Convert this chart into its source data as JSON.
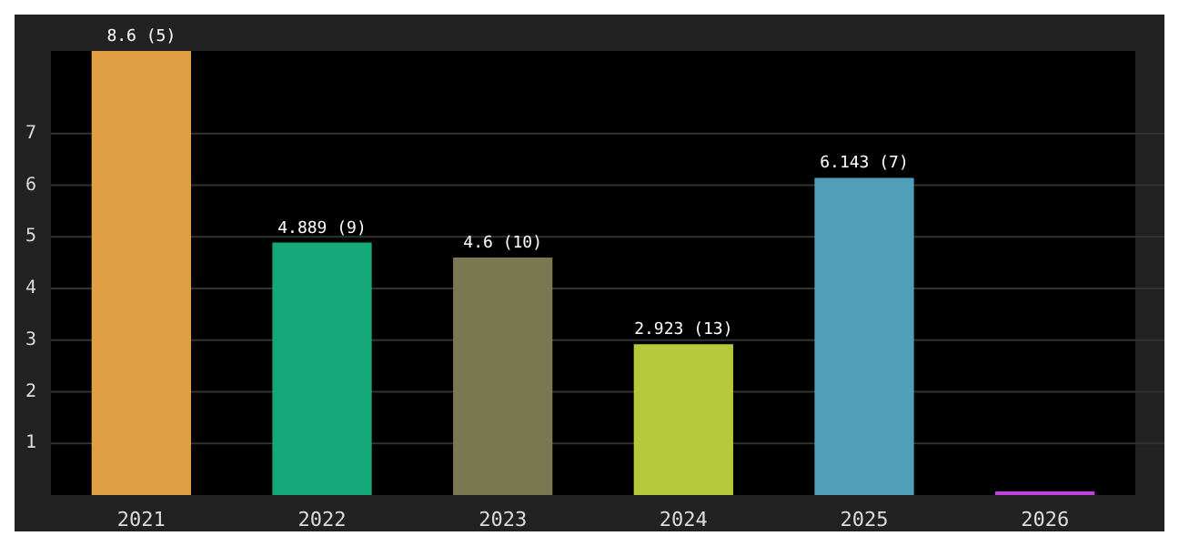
{
  "chart_data": {
    "type": "bar",
    "categories": [
      "2021",
      "2022",
      "2023",
      "2024",
      "2025",
      "2026"
    ],
    "values": [
      8.6,
      4.889,
      4.6,
      2.923,
      6.143,
      0
    ],
    "colors": [
      "#e0a043",
      "#16a878",
      "#7a7850",
      "#b5c93a",
      "#4f9fb8",
      "#c040e0"
    ],
    "value_labels": [
      "8.6 (5)",
      "4.889 (9)",
      "4.6 (10)",
      "2.923 (13)",
      "6.143 (7)",
      null
    ],
    "ylim": [
      0,
      8.6
    ],
    "yticks": [
      1,
      2,
      3,
      4,
      5,
      6,
      7
    ],
    "grid": "y"
  }
}
